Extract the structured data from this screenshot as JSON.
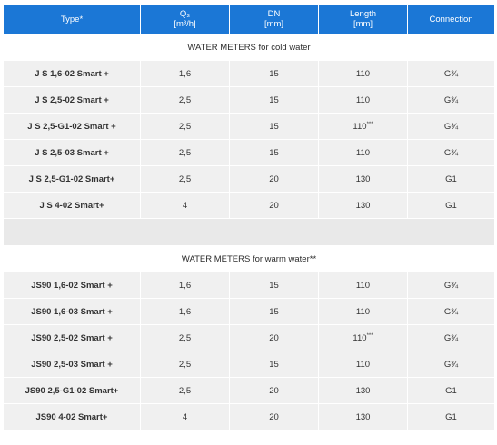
{
  "headers": {
    "type": "Type*",
    "q3_line1": "Q₃",
    "q3_line2": "[m³/h]",
    "dn_line1": "DN",
    "dn_line2": "[mm]",
    "length_line1": "Length",
    "length_line2": "[mm]",
    "connection": "Connection"
  },
  "sections": [
    {
      "title": "WATER METERS for cold water",
      "rows": [
        {
          "type": "J S 1,6-02  Smart +",
          "q3": "1,6",
          "dn": "15",
          "length": "110",
          "length_note": "",
          "connection": "G¾"
        },
        {
          "type": "J S 2,5-02  Smart +",
          "q3": "2,5",
          "dn": "15",
          "length": "110",
          "length_note": "",
          "connection": "G¾"
        },
        {
          "type": "J S 2,5-G1-02  Smart +",
          "q3": "2,5",
          "dn": "15",
          "length": "110",
          "length_note": "***",
          "connection": "G¾"
        },
        {
          "type": "J S 2,5-03  Smart +",
          "q3": "2,5",
          "dn": "15",
          "length": "110",
          "length_note": "",
          "connection": "G¾"
        },
        {
          "type": "J S 2,5-G1-02  Smart+",
          "q3": "2,5",
          "dn": "20",
          "length": "130",
          "length_note": "",
          "connection": "G1"
        },
        {
          "type": "J S 4-02  Smart+",
          "q3": "4",
          "dn": "20",
          "length": "130",
          "length_note": "",
          "connection": "G1"
        }
      ]
    },
    {
      "title": "WATER METERS for warm water**",
      "rows": [
        {
          "type": "JS90  1,6-02  Smart +",
          "q3": "1,6",
          "dn": "15",
          "length": "110",
          "length_note": "",
          "connection": "G¾"
        },
        {
          "type": "JS90  1,6-03  Smart +",
          "q3": "1,6",
          "dn": "15",
          "length": "110",
          "length_note": "",
          "connection": "G¾"
        },
        {
          "type": "JS90  2,5-02  Smart +",
          "q3": "2,5",
          "dn": "20",
          "length": "110",
          "length_note": "***",
          "connection": "G¾"
        },
        {
          "type": "JS90  2,5-03  Smart +",
          "q3": "2,5",
          "dn": "15",
          "length": "110",
          "length_note": "",
          "connection": "G¾"
        },
        {
          "type": "JS90  2,5-G1-02  Smart+",
          "q3": "2,5",
          "dn": "20",
          "length": "130",
          "length_note": "",
          "connection": "G1"
        },
        {
          "type": "JS90  4-02  Smart+",
          "q3": "4",
          "dn": "20",
          "length": "130",
          "length_note": "",
          "connection": "G1"
        }
      ]
    }
  ]
}
